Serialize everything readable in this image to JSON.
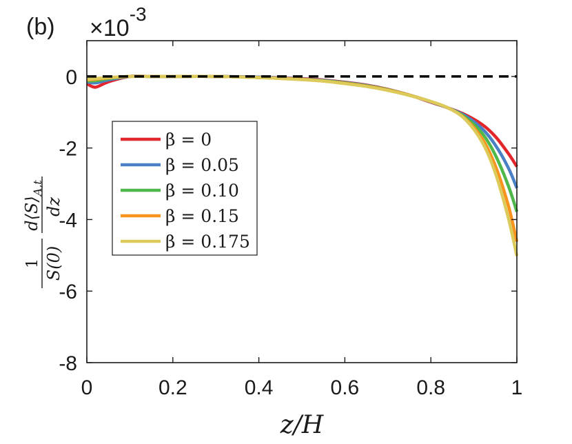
{
  "chart_data": {
    "type": "line",
    "panel_label": "(b)",
    "exponent_text": "×10",
    "exponent_power": "-3",
    "xlabel": "z/H",
    "ylabel": {
      "fraction_num": "1",
      "fraction_den": "S(0)",
      "deriv_num": "d⟨S⟩",
      "deriv_sub": "A,t",
      "deriv_den": "dz"
    },
    "xlim": [
      0,
      1
    ],
    "ylim": [
      -8,
      1
    ],
    "xticks": [
      0,
      0.2,
      0.4,
      0.6,
      0.8,
      1
    ],
    "xtick_labels": [
      "0",
      "0.2",
      "0.4",
      "0.6",
      "0.8",
      "1"
    ],
    "yticks": [
      0,
      -2,
      -4,
      -6,
      -8
    ],
    "ytick_labels": [
      "0",
      "-2",
      "-4",
      "-6",
      "-8"
    ],
    "grid": false,
    "legend_position": "center-left",
    "reference_line": {
      "y": 0,
      "style": "dashed",
      "color": "#000000"
    },
    "x": [
      0,
      0.02,
      0.05,
      0.1,
      0.15,
      0.2,
      0.3,
      0.4,
      0.5,
      0.55,
      0.6,
      0.65,
      0.7,
      0.75,
      0.8,
      0.84,
      0.88,
      0.92,
      0.95,
      0.98,
      1.0
    ],
    "series": [
      {
        "name": "β = 0",
        "color": "#e3262c",
        "values": [
          -0.2,
          -0.3,
          -0.15,
          0.0,
          0.0,
          0.0,
          0.0,
          -0.02,
          -0.06,
          -0.1,
          -0.16,
          -0.24,
          -0.36,
          -0.52,
          -0.72,
          -0.88,
          -1.07,
          -1.35,
          -1.68,
          -2.15,
          -2.52
        ]
      },
      {
        "name": "β = 0.05",
        "color": "#4a80c4",
        "values": [
          -0.15,
          -0.18,
          -0.1,
          0.0,
          0.0,
          0.0,
          0.0,
          -0.02,
          -0.07,
          -0.11,
          -0.17,
          -0.25,
          -0.37,
          -0.52,
          -0.71,
          -0.88,
          -1.1,
          -1.47,
          -1.92,
          -2.55,
          -3.12
        ]
      },
      {
        "name": "β = 0.10",
        "color": "#4fb84a",
        "values": [
          -0.12,
          -0.12,
          -0.06,
          0.0,
          0.0,
          0.0,
          0.0,
          -0.03,
          -0.08,
          -0.12,
          -0.18,
          -0.26,
          -0.37,
          -0.52,
          -0.7,
          -0.88,
          -1.14,
          -1.6,
          -2.2,
          -3.05,
          -3.78
        ]
      },
      {
        "name": "β = 0.15",
        "color": "#f8931e",
        "values": [
          -0.1,
          -0.08,
          -0.04,
          0.0,
          0.0,
          0.0,
          0.0,
          -0.03,
          -0.08,
          -0.13,
          -0.19,
          -0.27,
          -0.38,
          -0.52,
          -0.7,
          -0.88,
          -1.18,
          -1.75,
          -2.5,
          -3.6,
          -4.62
        ]
      },
      {
        "name": "β = 0.175",
        "color": "#dccb5a",
        "values": [
          -0.08,
          -0.06,
          -0.03,
          0.0,
          0.0,
          0.0,
          0.0,
          -0.03,
          -0.09,
          -0.13,
          -0.2,
          -0.28,
          -0.39,
          -0.53,
          -0.7,
          -0.88,
          -1.2,
          -1.85,
          -2.7,
          -3.95,
          -5.02
        ]
      }
    ]
  }
}
